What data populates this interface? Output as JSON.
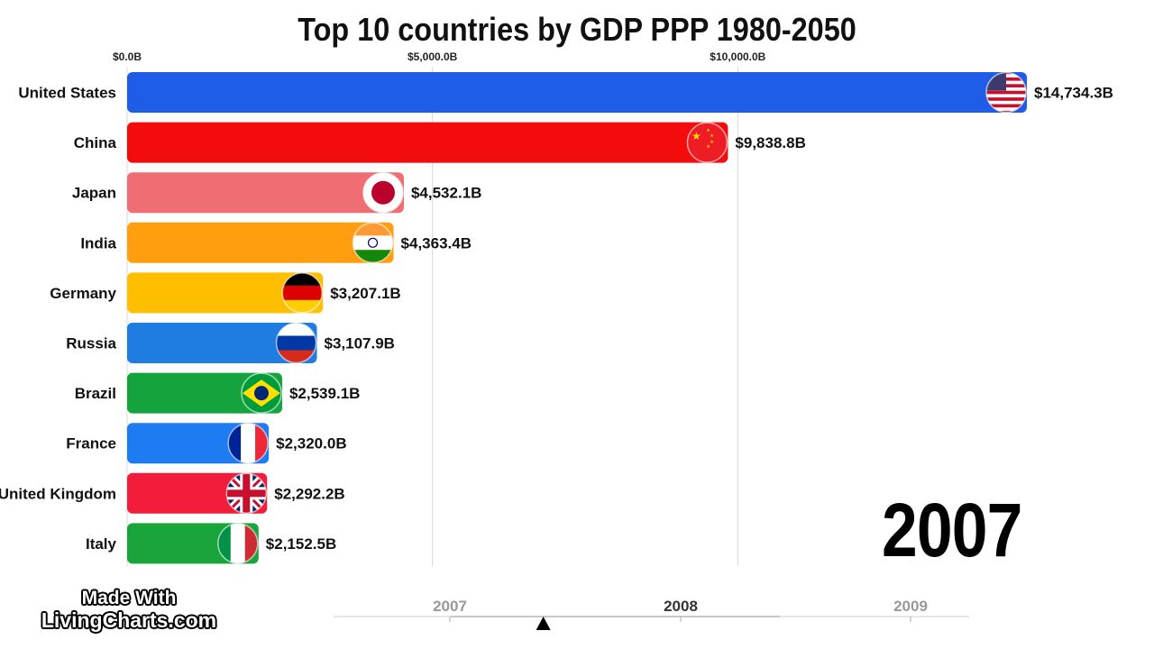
{
  "chart_data": {
    "type": "bar",
    "orientation": "horizontal",
    "title": "Top 10 countries by GDP PPP 1980-2050",
    "x_ticks": [
      {
        "value": 0,
        "label": "$0.0B"
      },
      {
        "value": 5000,
        "label": "$5,000.0B"
      },
      {
        "value": 10000,
        "label": "$10,000.0B"
      }
    ],
    "xlim": [
      0,
      14734.3
    ],
    "grid": true,
    "current_year": "2007",
    "categories": [
      "United States",
      "China",
      "Japan",
      "India",
      "Germany",
      "Russia",
      "Brazil",
      "France",
      "United Kingdom",
      "Italy"
    ],
    "values": [
      14734.3,
      9838.8,
      4532.1,
      4363.4,
      3207.1,
      3107.9,
      2539.1,
      2320.0,
      2292.2,
      2152.5
    ],
    "value_labels": [
      "$14,734.3B",
      "$9,838.8B",
      "$4,532.1B",
      "$4,363.4B",
      "$3,207.1B",
      "$3,107.9B",
      "$2,539.1B",
      "$2,320.0B",
      "$2,292.2B",
      "$2,152.5B"
    ],
    "colors": [
      "#1f5de8",
      "#f20c0c",
      "#ef6e73",
      "#ff9e0f",
      "#ffbe00",
      "#1f7ce0",
      "#15a33d",
      "#1d7cf2",
      "#f21d3a",
      "#19a53c"
    ],
    "flags": [
      "us-flag",
      "china-flag",
      "japan-flag",
      "india-flag",
      "germany-flag",
      "russia-flag",
      "brazil-flag",
      "france-flag",
      "uk-flag",
      "italy-flag"
    ]
  },
  "timeline": {
    "years": [
      "2007",
      "2008",
      "2009"
    ],
    "active_year": "2008",
    "position": 0.33,
    "colors": {
      "inactive": "#999999",
      "active": "#333333",
      "track": "#e6e6e6"
    }
  },
  "logo": {
    "line1": "Made With",
    "line2": "LivingCharts.com"
  }
}
